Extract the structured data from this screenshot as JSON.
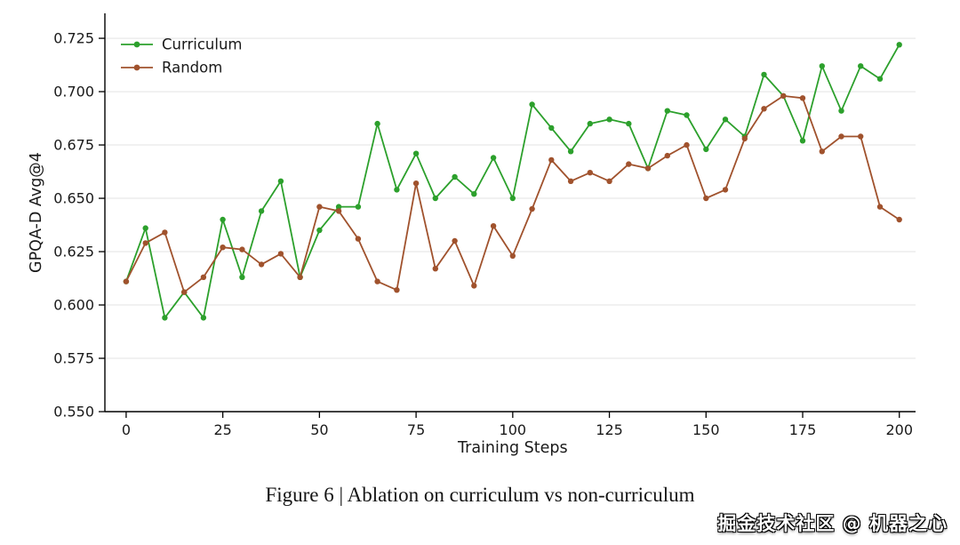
{
  "figure": {
    "caption": "Figure 6 | Ablation on curriculum vs non-curriculum",
    "watermark": "掘金技术社区 @ 机器之心"
  },
  "chart_data": {
    "type": "line",
    "title": "",
    "xlabel": "Training Steps",
    "ylabel": "GPQA-D Avg@4",
    "grid": "horizontal",
    "legend_position": "upper-left",
    "marker": "circle",
    "xlim": [
      -5.5,
      204.2
    ],
    "ylim": [
      0.55,
      0.7367
    ],
    "xticks": [
      0,
      25,
      50,
      75,
      100,
      125,
      150,
      175,
      200
    ],
    "yticks": [
      0.55,
      0.575,
      0.6,
      0.625,
      0.65,
      0.675,
      0.7,
      0.725
    ],
    "x": [
      0,
      5,
      10,
      15,
      20,
      25,
      30,
      35,
      40,
      45,
      50,
      55,
      60,
      65,
      70,
      75,
      80,
      85,
      90,
      95,
      100,
      105,
      110,
      115,
      120,
      125,
      130,
      135,
      140,
      145,
      150,
      155,
      160,
      165,
      170,
      175,
      180,
      185,
      190,
      195,
      200
    ],
    "series": [
      {
        "name": "Curriculum",
        "color": "#2ca02c",
        "values": [
          0.611,
          0.636,
          0.594,
          0.606,
          0.594,
          0.64,
          0.613,
          0.644,
          0.658,
          0.613,
          0.635,
          0.646,
          0.646,
          0.685,
          0.654,
          0.671,
          0.65,
          0.66,
          0.652,
          0.669,
          0.65,
          0.694,
          0.683,
          0.672,
          0.685,
          0.687,
          0.685,
          0.664,
          0.691,
          0.689,
          0.673,
          0.687,
          0.679,
          0.708,
          0.698,
          0.677,
          0.712,
          0.691,
          0.712,
          0.706,
          0.722
        ]
      },
      {
        "name": "Random",
        "color": "#a0522d",
        "values": [
          0.611,
          0.629,
          0.634,
          0.606,
          0.613,
          0.627,
          0.626,
          0.619,
          0.624,
          0.613,
          0.646,
          0.644,
          0.631,
          0.611,
          0.607,
          0.657,
          0.617,
          0.63,
          0.609,
          0.637,
          0.623,
          0.645,
          0.668,
          0.658,
          0.662,
          0.658,
          0.666,
          0.664,
          0.67,
          0.675,
          0.65,
          0.654,
          0.678,
          0.692,
          0.698,
          0.697,
          0.672,
          0.679,
          0.679,
          0.646,
          0.64
        ]
      }
    ],
    "style": {
      "grid_color": "#e3e3e3",
      "spine_color": "#000000",
      "tick_label_color": "#1a1a1a",
      "axis_label_color": "#1a1a1a"
    }
  }
}
